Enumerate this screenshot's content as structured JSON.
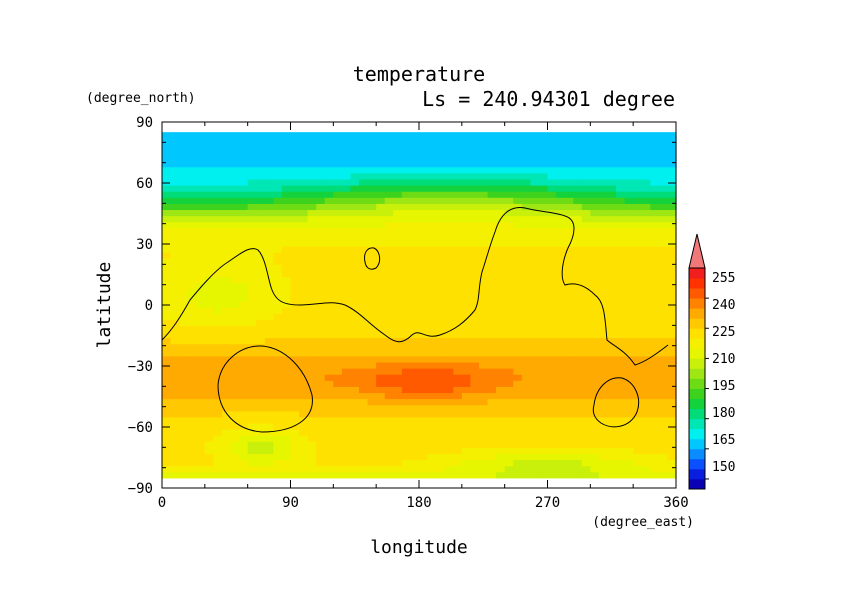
{
  "chart_data": {
    "type": "heatmap",
    "title": "temperature",
    "subtitle": "Ls = 240.94301 degree",
    "xlabel": "longitude",
    "ylabel": "latitude",
    "xunit": "(degree_east)",
    "yunit": "(degree_north)",
    "xlim": [
      0,
      360
    ],
    "ylim": [
      -90,
      90
    ],
    "xticks": [
      0,
      90,
      180,
      270,
      360
    ],
    "yticks": [
      90,
      60,
      30,
      0,
      -30,
      -60,
      -90
    ],
    "xtick_labels": [
      "0",
      "90",
      "180",
      "270",
      "360"
    ],
    "ytick_labels": [
      "90",
      "60",
      "30",
      "0",
      "−30",
      "−60",
      "−90"
    ],
    "colorbar": {
      "labels": [
        "255",
        "240",
        "225",
        "210",
        "195",
        "180",
        "165",
        "150"
      ],
      "levels": [
        145,
        150,
        155,
        160,
        165,
        170,
        175,
        180,
        185,
        190,
        195,
        200,
        205,
        210,
        215,
        220,
        225,
        230,
        235,
        240,
        245,
        250,
        255,
        260
      ],
      "colors": [
        "#0a00b4",
        "#0a1ee0",
        "#0a50ff",
        "#0a8cff",
        "#00c8ff",
        "#00f0f0",
        "#00e6b4",
        "#00dc78",
        "#14d23c",
        "#3cd21e",
        "#6edc14",
        "#9ee614",
        "#c8f00a",
        "#e6f500",
        "#f5f000",
        "#ffe100",
        "#ffc800",
        "#ffaa00",
        "#ff8200",
        "#ff5a00",
        "#ff3200",
        "#f01e1e",
        "#f07878"
      ],
      "extend": "max"
    },
    "data_window_lat": [
      -85,
      85
    ],
    "grid": false,
    "legend": "right colorbar"
  }
}
